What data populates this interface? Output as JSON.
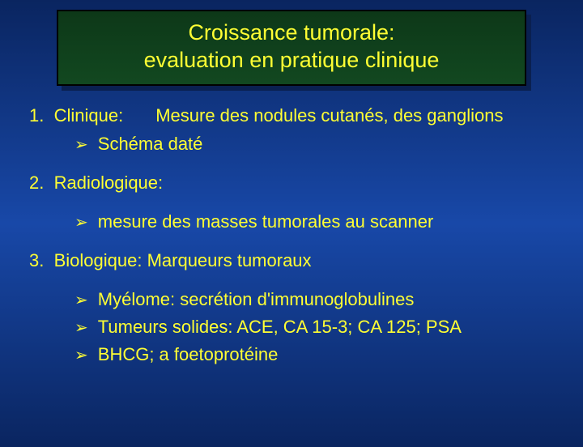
{
  "colors": {
    "background_gradient": [
      "#0a2560",
      "#1848a8",
      "#0a2560"
    ],
    "title_bg_gradient": [
      "#0d3818",
      "#124820"
    ],
    "title_border": "#000000",
    "title_shadow": "#0a2050",
    "text": "#ffff33",
    "bullet_arrow": "#ffff33"
  },
  "typography": {
    "family": "Comic Sans MS",
    "title_fontsize": 27,
    "body_fontsize": 22
  },
  "title": {
    "line1": "Croissance tumorale:",
    "line2": "evaluation en pratique clinique"
  },
  "items": [
    {
      "number": "1.",
      "label": "Clinique:",
      "inline_text": "Mesure des nodules cutanés, des ganglions",
      "bullets": [
        "Schéma daté"
      ]
    },
    {
      "number": "2.",
      "label": "Radiologique:",
      "inline_text": "",
      "bullets": [
        "mesure des masses tumorales au scanner"
      ]
    },
    {
      "number": "3.",
      "label": "Biologique: Marqueurs tumoraux",
      "inline_text": "",
      "bullets": [
        "Myélome: secrétion d'immunoglobulines",
        "Tumeurs solides: ACE, CA 15-3; CA 125; PSA",
        "BHCG; a foetoprotéine"
      ]
    }
  ],
  "bullet_glyph": "➢"
}
